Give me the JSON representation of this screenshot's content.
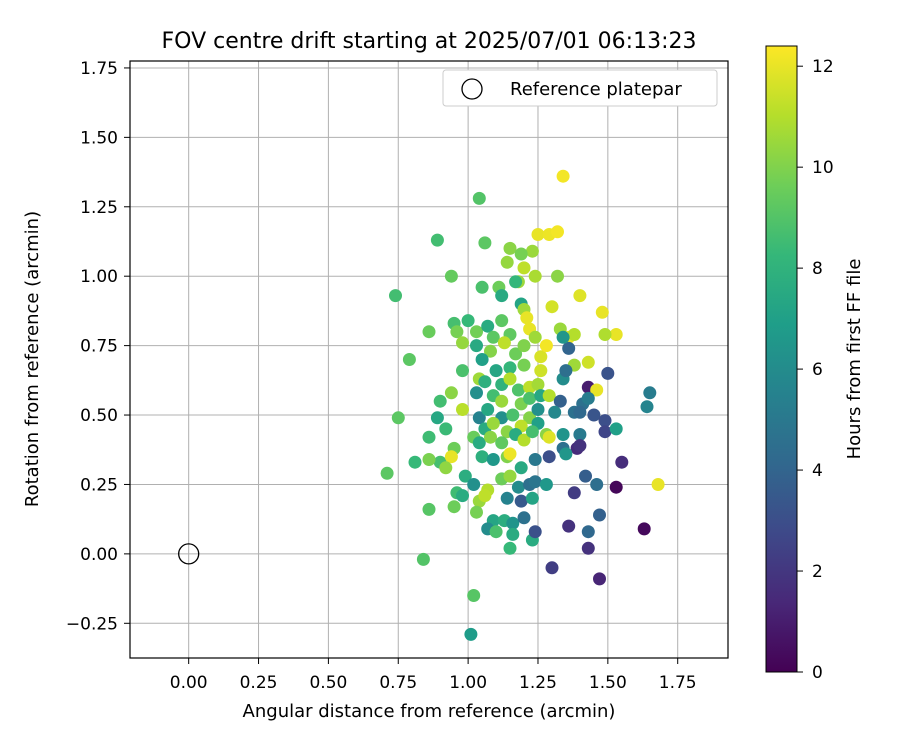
{
  "chart_data": {
    "type": "scatter",
    "title": "FOV centre drift starting at 2025/07/01 06:13:23",
    "xlabel": "Angular distance from reference (arcmin)",
    "ylabel": "Rotation from reference (arcmin)",
    "xlim": [
      -0.21,
      1.93
    ],
    "ylim": [
      -0.375,
      1.775
    ],
    "xticks": [
      "0.00",
      "0.25",
      "0.50",
      "0.75",
      "1.00",
      "1.25",
      "1.50",
      "1.75"
    ],
    "yticks": [
      "−0.25",
      "0.00",
      "0.25",
      "0.50",
      "0.75",
      "1.00",
      "1.25",
      "1.50",
      "1.75"
    ],
    "grid": true,
    "legend": {
      "placement": "top-right",
      "entries": [
        "Reference platepar"
      ]
    },
    "reference_point": {
      "x": 0.0,
      "y": 0.0
    },
    "colorbar": {
      "label": "Hours from first FF file",
      "range": [
        0,
        12.4
      ],
      "ticks": [
        "0",
        "2",
        "4",
        "6",
        "8",
        "10",
        "12"
      ],
      "colormap": "viridis"
    },
    "series": [
      {
        "points": [
          [
            1.34,
            1.36,
            12.2
          ],
          [
            1.04,
            1.28,
            9.0
          ],
          [
            1.25,
            1.15,
            12.0
          ],
          [
            1.29,
            1.15,
            12.1
          ],
          [
            1.32,
            1.16,
            12.2
          ],
          [
            1.23,
            1.09,
            10.5
          ],
          [
            1.15,
            1.1,
            10.2
          ],
          [
            1.19,
            1.08,
            9.8
          ],
          [
            1.06,
            1.12,
            9.2
          ],
          [
            0.89,
            1.13,
            8.6
          ],
          [
            1.14,
            1.05,
            10.4
          ],
          [
            1.2,
            1.03,
            11.2
          ],
          [
            1.24,
            1.0,
            10.8
          ],
          [
            1.18,
            0.98,
            10.5
          ],
          [
            1.32,
            1.0,
            10.2
          ],
          [
            0.94,
            1.0,
            9.4
          ],
          [
            1.05,
            0.96,
            8.8
          ],
          [
            1.11,
            0.96,
            9.6
          ],
          [
            1.12,
            0.93,
            7.5
          ],
          [
            1.17,
            0.98,
            8.2
          ],
          [
            1.4,
            0.93,
            11.8
          ],
          [
            0.74,
            0.93,
            8.6
          ],
          [
            1.19,
            0.9,
            7.2
          ],
          [
            1.2,
            0.88,
            10.6
          ],
          [
            1.21,
            0.85,
            12.0
          ],
          [
            1.3,
            0.89,
            11.6
          ],
          [
            1.48,
            0.87,
            12.0
          ],
          [
            0.95,
            0.83,
            8.7
          ],
          [
            1.0,
            0.84,
            8.3
          ],
          [
            1.03,
            0.8,
            9.7
          ],
          [
            1.07,
            0.82,
            7.6
          ],
          [
            1.09,
            0.78,
            9.2
          ],
          [
            1.12,
            0.84,
            9.2
          ],
          [
            1.15,
            0.79,
            9.3
          ],
          [
            1.22,
            0.81,
            12.0
          ],
          [
            1.24,
            0.78,
            10.6
          ],
          [
            1.33,
            0.81,
            10.5
          ],
          [
            1.36,
            0.78,
            12.0
          ],
          [
            1.38,
            0.79,
            11.0
          ],
          [
            1.53,
            0.79,
            12.0
          ],
          [
            1.49,
            0.79,
            10.9
          ],
          [
            0.86,
            0.8,
            9.5
          ],
          [
            0.96,
            0.8,
            9.8
          ],
          [
            0.98,
            0.76,
            10.4
          ],
          [
            1.03,
            0.75,
            7.5
          ],
          [
            1.08,
            0.73,
            10.1
          ],
          [
            1.13,
            0.76,
            11.2
          ],
          [
            1.17,
            0.72,
            9.6
          ],
          [
            1.2,
            0.75,
            10.0
          ],
          [
            1.26,
            0.71,
            11.7
          ],
          [
            1.28,
            0.75,
            12.2
          ],
          [
            1.36,
            0.74,
            4.0
          ],
          [
            1.34,
            0.78,
            6.5
          ],
          [
            1.43,
            0.69,
            11.5
          ],
          [
            1.38,
            0.68,
            10.6
          ],
          [
            0.79,
            0.7,
            9.2
          ],
          [
            1.05,
            0.7,
            7.0
          ],
          [
            1.1,
            0.66,
            7.3
          ],
          [
            1.15,
            0.67,
            8.2
          ],
          [
            1.2,
            0.68,
            9.8
          ],
          [
            1.26,
            0.66,
            11.5
          ],
          [
            1.34,
            0.63,
            6.0
          ],
          [
            1.35,
            0.66,
            4.5
          ],
          [
            1.5,
            0.65,
            3.2
          ],
          [
            0.98,
            0.66,
            8.8
          ],
          [
            1.04,
            0.63,
            10.6
          ],
          [
            1.06,
            0.62,
            7.8
          ],
          [
            1.09,
            0.57,
            8.6
          ],
          [
            1.12,
            0.61,
            8.0
          ],
          [
            1.15,
            0.63,
            11.0
          ],
          [
            1.18,
            0.59,
            8.9
          ],
          [
            1.22,
            0.6,
            11.2
          ],
          [
            1.25,
            0.61,
            10.7
          ],
          [
            1.43,
            0.6,
            1.0
          ],
          [
            1.46,
            0.59,
            12.0
          ],
          [
            1.03,
            0.58,
            6.2
          ],
          [
            0.94,
            0.58,
            10.2
          ],
          [
            1.12,
            0.55,
            10.5
          ],
          [
            1.19,
            0.54,
            9.9
          ],
          [
            1.22,
            0.56,
            8.8
          ],
          [
            1.26,
            0.57,
            7.4
          ],
          [
            1.29,
            0.57,
            11.0
          ],
          [
            1.33,
            0.55,
            3.8
          ],
          [
            1.41,
            0.54,
            4.6
          ],
          [
            1.43,
            0.56,
            5.2
          ],
          [
            1.65,
            0.58,
            5.2
          ],
          [
            1.64,
            0.53,
            5.6
          ],
          [
            0.9,
            0.55,
            8.6
          ],
          [
            0.98,
            0.52,
            11.1
          ],
          [
            1.04,
            0.49,
            5.5
          ],
          [
            1.07,
            0.52,
            7.4
          ],
          [
            1.12,
            0.49,
            6.2
          ],
          [
            1.16,
            0.5,
            8.8
          ],
          [
            1.22,
            0.49,
            10.1
          ],
          [
            1.25,
            0.52,
            6.2
          ],
          [
            1.31,
            0.51,
            5.8
          ],
          [
            1.38,
            0.51,
            4.6
          ],
          [
            1.4,
            0.51,
            4.2
          ],
          [
            1.45,
            0.5,
            3.3
          ],
          [
            1.49,
            0.48,
            3.0
          ],
          [
            0.89,
            0.49,
            7.4
          ],
          [
            0.75,
            0.49,
            9.2
          ],
          [
            1.06,
            0.45,
            7.6
          ],
          [
            1.09,
            0.47,
            10.5
          ],
          [
            1.14,
            0.44,
            10.2
          ],
          [
            1.19,
            0.46,
            11.2
          ],
          [
            1.25,
            0.47,
            7.0
          ],
          [
            1.28,
            0.43,
            10.2
          ],
          [
            1.34,
            0.43,
            6.4
          ],
          [
            1.4,
            0.43,
            5.1
          ],
          [
            1.49,
            0.44,
            2.6
          ],
          [
            1.53,
            0.45,
            7.0
          ],
          [
            0.92,
            0.45,
            8.4
          ],
          [
            0.86,
            0.42,
            8.5
          ],
          [
            1.02,
            0.42,
            9.5
          ],
          [
            1.04,
            0.4,
            7.6
          ],
          [
            1.08,
            0.42,
            10.2
          ],
          [
            1.12,
            0.4,
            9.3
          ],
          [
            1.17,
            0.43,
            7.6
          ],
          [
            1.2,
            0.41,
            11.0
          ],
          [
            1.23,
            0.44,
            8.7
          ],
          [
            1.29,
            0.42,
            11.8
          ],
          [
            1.34,
            0.38,
            4.6
          ],
          [
            1.39,
            0.38,
            1.5
          ],
          [
            1.4,
            0.39,
            1.8
          ],
          [
            0.95,
            0.38,
            9.6
          ],
          [
            0.9,
            0.33,
            8.7
          ],
          [
            0.94,
            0.35,
            12.0
          ],
          [
            1.05,
            0.35,
            7.8
          ],
          [
            1.09,
            0.34,
            6.6
          ],
          [
            1.14,
            0.35,
            10.0
          ],
          [
            1.15,
            0.36,
            12.1
          ],
          [
            1.19,
            0.31,
            7.5
          ],
          [
            1.24,
            0.34,
            5.0
          ],
          [
            1.29,
            0.35,
            3.0
          ],
          [
            1.35,
            0.36,
            6.5
          ],
          [
            1.42,
            0.28,
            3.7
          ],
          [
            1.55,
            0.33,
            1.6
          ],
          [
            0.71,
            0.29,
            9.2
          ],
          [
            0.81,
            0.33,
            8.3
          ],
          [
            0.86,
            0.34,
            9.9
          ],
          [
            0.92,
            0.31,
            10.3
          ],
          [
            0.99,
            0.28,
            7.7
          ],
          [
            1.02,
            0.25,
            6.2
          ],
          [
            1.07,
            0.23,
            11.0
          ],
          [
            1.12,
            0.27,
            9.6
          ],
          [
            1.15,
            0.28,
            10.4
          ],
          [
            1.18,
            0.24,
            6.0
          ],
          [
            1.22,
            0.25,
            4.5
          ],
          [
            1.24,
            0.26,
            4.8
          ],
          [
            1.28,
            0.25,
            6.6
          ],
          [
            1.38,
            0.22,
            2.2
          ],
          [
            1.46,
            0.25,
            4.5
          ],
          [
            1.53,
            0.24,
            0.2
          ],
          [
            1.68,
            0.25,
            12.0
          ],
          [
            0.96,
            0.22,
            8.5
          ],
          [
            0.98,
            0.21,
            7.6
          ],
          [
            1.04,
            0.19,
            10.5
          ],
          [
            1.06,
            0.21,
            11.2
          ],
          [
            1.14,
            0.2,
            5.5
          ],
          [
            1.19,
            0.19,
            3.5
          ],
          [
            1.23,
            0.2,
            7.2
          ],
          [
            1.03,
            0.15,
            9.8
          ],
          [
            1.09,
            0.12,
            7.3
          ],
          [
            1.13,
            0.12,
            7.7
          ],
          [
            1.16,
            0.11,
            6.4
          ],
          [
            1.2,
            0.13,
            4.6
          ],
          [
            1.47,
            0.14,
            3.8
          ],
          [
            0.86,
            0.16,
            9.1
          ],
          [
            0.95,
            0.17,
            9.6
          ],
          [
            1.07,
            0.09,
            6.0
          ],
          [
            1.1,
            0.08,
            8.8
          ],
          [
            1.16,
            0.07,
            7.6
          ],
          [
            1.23,
            0.05,
            7.6
          ],
          [
            1.24,
            0.08,
            3.1
          ],
          [
            1.36,
            0.1,
            1.8
          ],
          [
            1.43,
            0.08,
            4.2
          ],
          [
            1.63,
            0.09,
            0.3
          ],
          [
            1.15,
            0.02,
            8.3
          ],
          [
            1.43,
            0.02,
            1.8
          ],
          [
            0.84,
            -0.02,
            9.0
          ],
          [
            1.3,
            -0.05,
            2.3
          ],
          [
            1.47,
            -0.09,
            1.3
          ],
          [
            1.02,
            -0.15,
            9.1
          ],
          [
            1.01,
            -0.29,
            6.8
          ]
        ]
      }
    ]
  }
}
